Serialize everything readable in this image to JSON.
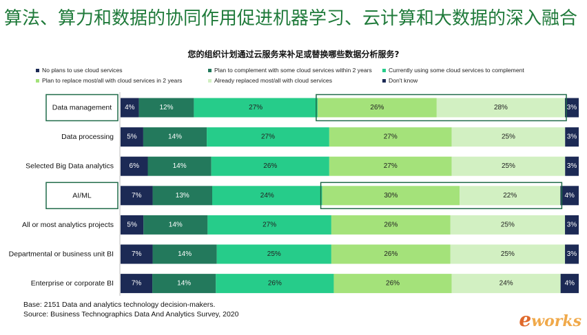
{
  "header": {
    "title": "算法、算力和数据的协同作用促进机器学习、云计算和大数据的深入融合"
  },
  "footnotes": {
    "base": "Base: 2151 Data and analytics technology decision-makers.",
    "source": "Source: Business Technographics Data And Analytics Survey, 2020"
  },
  "brand": {
    "mark": "e",
    "rest": "works"
  },
  "colors": {
    "title": "#1f7a3a",
    "highlight_box": "#1f6a48",
    "series": [
      "#1c2a55",
      "#23795c",
      "#26cc8a",
      "#a4e27a",
      "#d2f0c2",
      "#1c2a55"
    ],
    "label_light": "#ffffff",
    "label_dark": "#222222"
  },
  "chart_data": {
    "type": "bar",
    "orientation": "horizontal",
    "stacked": true,
    "title": "您的组织计划通过云服务来补足或替换哪些数据分析服务?",
    "xlabel": "",
    "ylabel": "",
    "xlim": [
      0,
      100
    ],
    "grid": false,
    "legend_position": "top",
    "categories": [
      "Data management",
      "Data processing",
      "Selected Big Data analytics",
      "AI/ML",
      "All or most analytics projects",
      "Departmental or business unit BI",
      "Enterprise or corporate BI"
    ],
    "highlighted_categories": [
      "Data management",
      "AI/ML"
    ],
    "highlighted_series": [
      "Plan to replace most/all with cloud services in 2 years",
      "Already replaced most/all with cloud services"
    ],
    "series": [
      {
        "name": "No plans to use cloud services",
        "values": [
          4,
          5,
          6,
          7,
          5,
          7,
          7
        ]
      },
      {
        "name": "Plan to complement with some cloud services within 2 years",
        "values": [
          12,
          14,
          14,
          13,
          14,
          14,
          14
        ]
      },
      {
        "name": "Currently using some cloud services to complement",
        "values": [
          27,
          27,
          26,
          24,
          27,
          25,
          26
        ]
      },
      {
        "name": "Plan to replace most/all with cloud services in 2 years",
        "values": [
          26,
          27,
          27,
          30,
          26,
          26,
          26
        ]
      },
      {
        "name": "Already replaced most/all with cloud services",
        "values": [
          28,
          25,
          25,
          22,
          25,
          25,
          24
        ]
      },
      {
        "name": "Don't know",
        "values": [
          3,
          3,
          3,
          4,
          3,
          3,
          4
        ]
      }
    ]
  }
}
